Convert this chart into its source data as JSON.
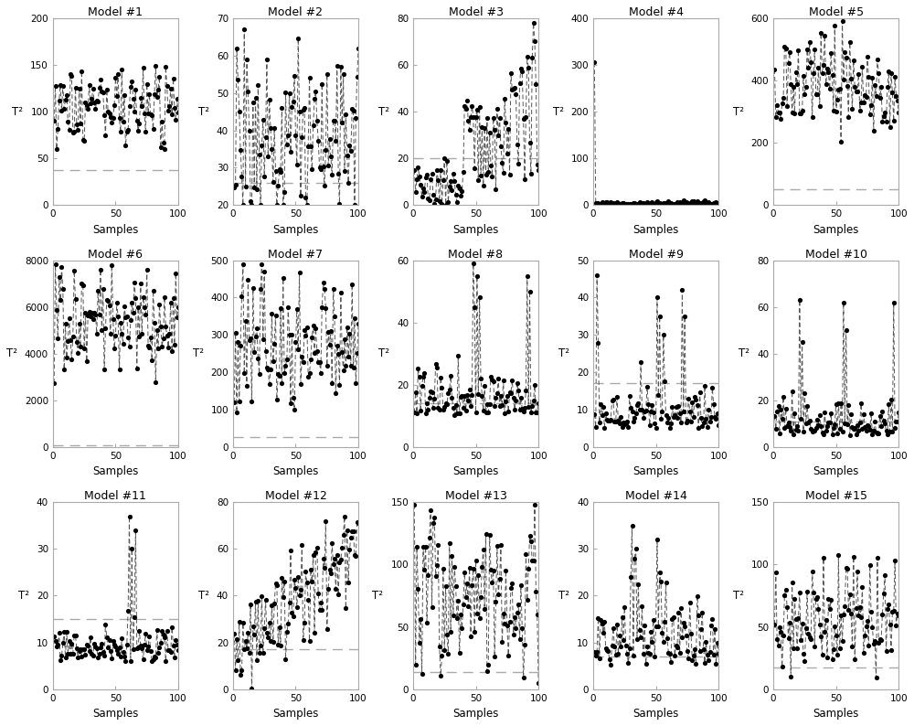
{
  "models": [
    {
      "title": "Model #1",
      "ylim": [
        0,
        200
      ],
      "yticks": [
        0,
        50,
        100,
        150,
        200
      ],
      "threshold": 37,
      "seed": 101
    },
    {
      "title": "Model #2",
      "ylim": [
        20,
        70
      ],
      "yticks": [
        20,
        30,
        40,
        50,
        60,
        70
      ],
      "threshold": 26,
      "seed": 202
    },
    {
      "title": "Model #3",
      "ylim": [
        0,
        80
      ],
      "yticks": [
        0,
        20,
        40,
        60,
        80
      ],
      "threshold": 20,
      "seed": 303
    },
    {
      "title": "Model #4",
      "ylim": [
        0,
        400
      ],
      "yticks": [
        0,
        100,
        200,
        300,
        400
      ],
      "threshold": 4,
      "seed": 404
    },
    {
      "title": "Model #5",
      "ylim": [
        0,
        600
      ],
      "yticks": [
        0,
        200,
        400,
        600
      ],
      "threshold": 50,
      "seed": 505
    },
    {
      "title": "Model #6",
      "ylim": [
        0,
        8000
      ],
      "yticks": [
        0,
        2000,
        4000,
        6000,
        8000
      ],
      "threshold": 60,
      "seed": 606
    },
    {
      "title": "Model #7",
      "ylim": [
        0,
        500
      ],
      "yticks": [
        0,
        100,
        200,
        300,
        400,
        500
      ],
      "threshold": 28,
      "seed": 707
    },
    {
      "title": "Model #8",
      "ylim": [
        0,
        60
      ],
      "yticks": [
        0,
        20,
        40,
        60
      ],
      "threshold": 14,
      "seed": 808
    },
    {
      "title": "Model #9",
      "ylim": [
        0,
        50
      ],
      "yticks": [
        0,
        10,
        20,
        30,
        40,
        50
      ],
      "threshold": 17,
      "seed": 909
    },
    {
      "title": "Model #10",
      "ylim": [
        0,
        80
      ],
      "yticks": [
        0,
        20,
        40,
        60,
        80
      ],
      "threshold": 11,
      "seed": 1010
    },
    {
      "title": "Model #11",
      "ylim": [
        0,
        40
      ],
      "yticks": [
        0,
        10,
        20,
        30,
        40
      ],
      "threshold": 15,
      "seed": 1111
    },
    {
      "title": "Model #12",
      "ylim": [
        0,
        80
      ],
      "yticks": [
        0,
        20,
        40,
        60,
        80
      ],
      "threshold": 17,
      "seed": 1212
    },
    {
      "title": "Model #13",
      "ylim": [
        0,
        150
      ],
      "yticks": [
        0,
        50,
        100,
        150
      ],
      "threshold": 14,
      "seed": 1313
    },
    {
      "title": "Model #14",
      "ylim": [
        0,
        40
      ],
      "yticks": [
        0,
        10,
        20,
        30,
        40
      ],
      "threshold": 7,
      "seed": 1414
    },
    {
      "title": "Model #15",
      "ylim": [
        0,
        150
      ],
      "yticks": [
        0,
        50,
        100,
        150
      ],
      "threshold": 17,
      "seed": 1515
    }
  ],
  "nrows": 3,
  "ncols": 5,
  "n_samples": 100,
  "xlabel": "Samples",
  "ylabel": "T²",
  "fig_bgcolor": "#ffffff",
  "ax_bgcolor": "#ffffff",
  "dot_color": "#000000",
  "line_color": "#555555",
  "threshold_color": "#aaaaaa",
  "border_color": "#aaaaaa"
}
